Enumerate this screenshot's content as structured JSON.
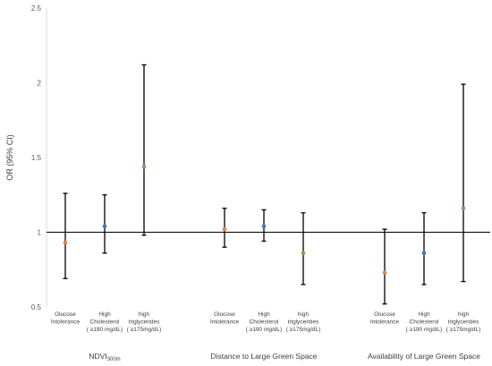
{
  "chart_data": {
    "type": "scatter",
    "title": "",
    "ylabel": "OR (95% CI)",
    "xlabel": "",
    "ylim": [
      0.5,
      2.5
    ],
    "yticks": [
      "0.5",
      "1",
      "1.5",
      "2",
      "2.5"
    ],
    "reference_line": 1,
    "grid": false,
    "legend": "none",
    "colors": {
      "glucose": "#ED7D31",
      "cholesterol": "#4472C4",
      "triglycerides": "#70AD47",
      "error_bar": "#000000",
      "reference_line": "#000000"
    },
    "groups": [
      {
        "label": "NDVI",
        "label_sub": "300m",
        "categories": [
          {
            "lines": [
              "Glucose",
              "Intolerance"
            ],
            "kind": "glucose",
            "or": 0.93,
            "ci_low": 0.69,
            "ci_high": 1.26
          },
          {
            "lines": [
              "High",
              "Cholesterol",
              "( ≥190 mg/dL)"
            ],
            "kind": "cholesterol",
            "or": 1.04,
            "ci_low": 0.86,
            "ci_high": 1.25
          },
          {
            "lines": [
              "high",
              "triglycerides",
              "( ≥175mg/dL)"
            ],
            "kind": "triglycerides",
            "or": 1.44,
            "ci_low": 0.98,
            "ci_high": 2.12
          }
        ]
      },
      {
        "label": "Distance to Large Green Space",
        "label_sub": "",
        "categories": [
          {
            "lines": [
              "Glucose",
              "Intolerance"
            ],
            "kind": "glucose",
            "or": 1.02,
            "ci_low": 0.9,
            "ci_high": 1.16
          },
          {
            "lines": [
              "High",
              "Cholesterol",
              "( ≥190 mg/dL)"
            ],
            "kind": "cholesterol",
            "or": 1.04,
            "ci_low": 0.94,
            "ci_high": 1.15
          },
          {
            "lines": [
              "high",
              "triglycerides",
              "( ≥175mg/dL)"
            ],
            "kind": "triglycerides",
            "or": 0.86,
            "ci_low": 0.65,
            "ci_high": 1.13
          }
        ]
      },
      {
        "label": "Availability of Large Green Space",
        "label_sub": "",
        "categories": [
          {
            "lines": [
              "Glucose",
              "Intolerance"
            ],
            "kind": "glucose",
            "or": 0.73,
            "ci_low": 0.52,
            "ci_high": 1.02
          },
          {
            "lines": [
              "High",
              "Cholesterol",
              "( ≥190 mg/dL)"
            ],
            "kind": "cholesterol",
            "or": 0.86,
            "ci_low": 0.65,
            "ci_high": 1.13
          },
          {
            "lines": [
              "high",
              "triglycerides",
              "( ≥175mg/dL)"
            ],
            "kind": "triglycerides",
            "or": 1.16,
            "ci_low": 0.67,
            "ci_high": 1.99
          }
        ]
      }
    ]
  }
}
